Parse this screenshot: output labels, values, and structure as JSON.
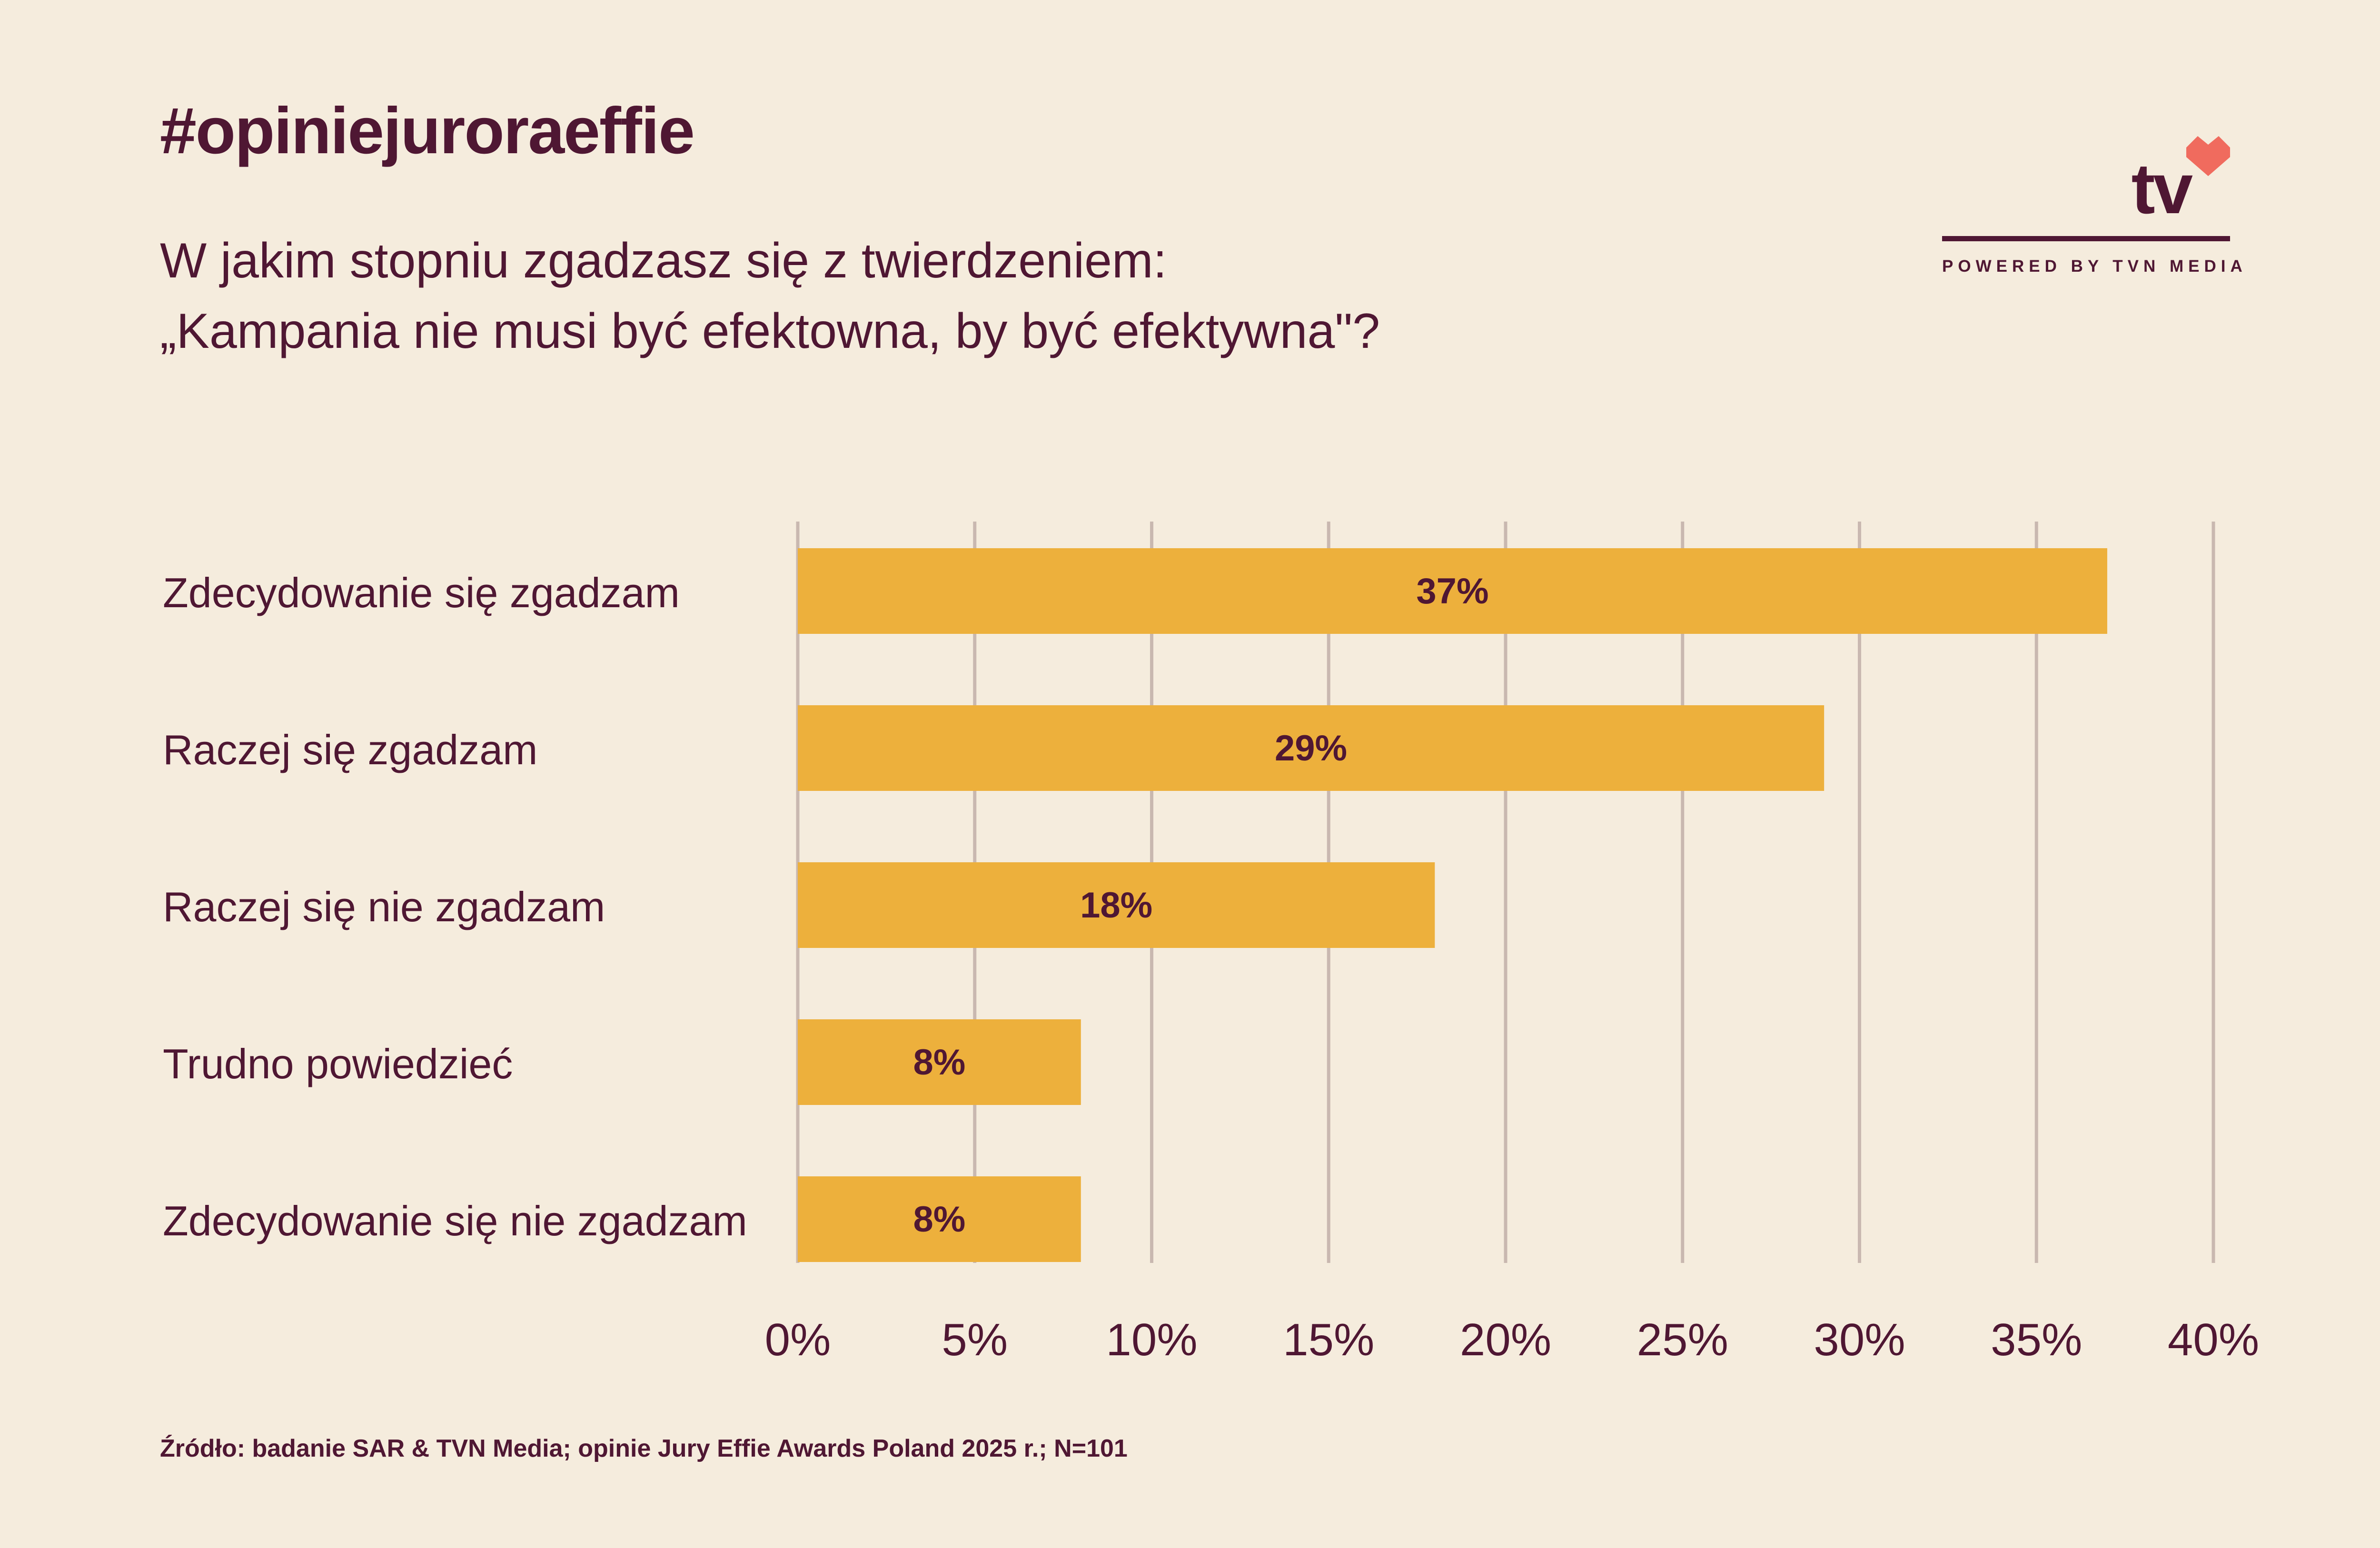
{
  "header": {
    "hashtag": "#opiniejuroraeffie",
    "question_line1": "W jakim stopniu zgadzasz się z twierdzeniem:",
    "question_line2": "„Kampania nie musi być efektowna, by być efektywna\"?"
  },
  "logo": {
    "text": "tv",
    "powered_by": "POWERED BY TVN MEDIA",
    "heart_color": "#f06b5e"
  },
  "colors": {
    "background": "#f5ecdd",
    "bar": "#edb03c",
    "text": "#4f1733",
    "grid": "#c9b8b0"
  },
  "chart_data": {
    "type": "bar",
    "orientation": "horizontal",
    "categories": [
      "Zdecydowanie się zgadzam",
      "Raczej się zgadzam",
      "Raczej się nie zgadzam",
      "Trudno powiedzieć",
      "Zdecydowanie się nie zgadzam"
    ],
    "values": [
      37,
      29,
      18,
      8,
      8
    ],
    "data_labels": [
      "37%",
      "29%",
      "18%",
      "8%",
      "8%"
    ],
    "xlim": [
      0,
      40
    ],
    "xticks": [
      "0%",
      "5%",
      "10%",
      "15%",
      "20%",
      "25%",
      "30%",
      "35%",
      "40%"
    ],
    "grid": true,
    "legend": "none"
  },
  "footer": {
    "source": "Źródło: badanie SAR & TVN Media; opinie Jury Effie Awards Poland 2025 r.; N=101"
  }
}
